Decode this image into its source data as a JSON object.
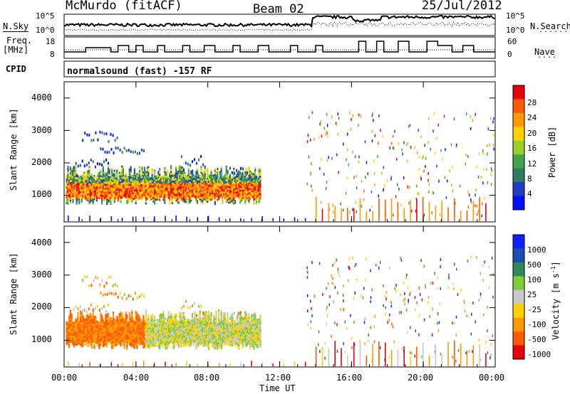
{
  "header": {
    "station": "McMurdo (fitACF)",
    "beam": "Beam 02",
    "date": "25/Jul/2012"
  },
  "left_labels": {
    "nsky": "N.Sky",
    "freq": "Freq.",
    "freq_unit": "[MHz]",
    "cpid": "CPID"
  },
  "right_labels": {
    "nsearch": "N.Search",
    "nave": "Nave"
  },
  "cpid_text": "normalsound (fast) -157 RF",
  "noise_panel": {
    "left_ticks": [
      "10^5",
      "10^0"
    ],
    "right_ticks": [
      "10^5",
      "10^0"
    ]
  },
  "freq_panel": {
    "left_ticks": [
      "18",
      "8"
    ],
    "right_ticks": [
      "60",
      "0"
    ]
  },
  "power_colorbar": {
    "label": "Power [dB]",
    "ticks": [
      "28",
      "24",
      "20",
      "16",
      "12",
      "8",
      "4"
    ],
    "colors": [
      "#e8000b",
      "#ff5a00",
      "#ff9b00",
      "#ffd000",
      "#9ccf28",
      "#3ea54a",
      "#2e7d5f",
      "#1e3fbf",
      "#0010ff"
    ]
  },
  "velocity_colorbar": {
    "label": "Velocity [m s",
    "label_sup": "-1",
    "label_close": "]",
    "ticks": [
      "1000",
      "500",
      "100",
      "25",
      "-25",
      "-100",
      "-500",
      "-1000"
    ],
    "colors": [
      "#1020ff",
      "#1b4fb0",
      "#2e8a5a",
      "#7dcc3a",
      "#c8c8c8",
      "#ffd000",
      "#ff9b00",
      "#ff5a00",
      "#e8000b"
    ]
  },
  "chart_data": [
    {
      "type": "heatmap",
      "name": "power",
      "ylabel": "Slant Range [km]",
      "yticks": [
        "1000",
        "2000",
        "3000",
        "4000"
      ],
      "ylim": [
        180,
        4500
      ],
      "xlim": [
        0,
        24
      ],
      "xticks": [
        "00:00",
        "04:00",
        "08:00",
        "12:00",
        "16:00",
        "20:00",
        "00:00"
      ],
      "regions": [
        {
          "t0": 0.1,
          "t1": 10.8,
          "r0": 650,
          "r1": 1850,
          "level": "high"
        },
        {
          "t0": 1.0,
          "t1": 3.0,
          "r0": 2700,
          "r1": 3000,
          "level": "low"
        },
        {
          "t0": 2.0,
          "t1": 4.5,
          "r0": 2300,
          "r1": 2500,
          "level": "low"
        },
        {
          "t0": 14.0,
          "t1": 23.8,
          "r0": 200,
          "r1": 900,
          "level": "mixed"
        }
      ]
    },
    {
      "type": "heatmap",
      "name": "velocity",
      "ylabel": "Slant Range [km]",
      "yticks": [
        "1000",
        "2000",
        "3000",
        "4000"
      ],
      "ylim": [
        180,
        4500
      ],
      "xlim": [
        0,
        24
      ],
      "xlabel": "Time UT",
      "xticks": [
        "00:00",
        "04:00",
        "08:00",
        "12:00",
        "16:00",
        "20:00",
        "00:00"
      ]
    }
  ]
}
